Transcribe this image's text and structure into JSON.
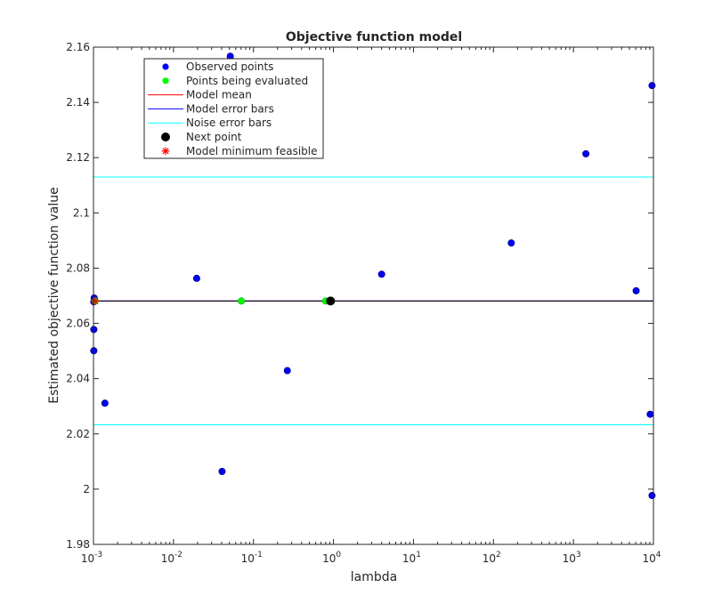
{
  "chart_data": {
    "type": "scatter",
    "title": "Objective function model",
    "xlabel": "lambda",
    "ylabel": "Estimated objective function value",
    "xscale": "log",
    "xlim": [
      0.001,
      10000
    ],
    "ylim": [
      1.98,
      2.16
    ],
    "grid": false,
    "legend_placement": "top-left",
    "x_ticks": [
      {
        "value": 0.001,
        "base": "10",
        "exp": "-3"
      },
      {
        "value": 0.01,
        "base": "10",
        "exp": "-2"
      },
      {
        "value": 0.1,
        "base": "10",
        "exp": "-1"
      },
      {
        "value": 1,
        "base": "10",
        "exp": "0"
      },
      {
        "value": 10,
        "base": "10",
        "exp": "1"
      },
      {
        "value": 100,
        "base": "10",
        "exp": "2"
      },
      {
        "value": 1000,
        "base": "10",
        "exp": "3"
      },
      {
        "value": 10000,
        "base": "10",
        "exp": "4"
      }
    ],
    "y_ticks": [
      {
        "value": 1.98,
        "label": "1.98"
      },
      {
        "value": 2.0,
        "label": "2"
      },
      {
        "value": 2.02,
        "label": "2.02"
      },
      {
        "value": 2.04,
        "label": "2.04"
      },
      {
        "value": 2.06,
        "label": "2.06"
      },
      {
        "value": 2.08,
        "label": "2.08"
      },
      {
        "value": 2.1,
        "label": "2.1"
      },
      {
        "value": 2.12,
        "label": "2.12"
      },
      {
        "value": 2.14,
        "label": "2.14"
      },
      {
        "value": 2.16,
        "label": "2.16"
      }
    ],
    "legend": [
      {
        "label": "Observed points",
        "marker": "dot",
        "color": "#0000ff"
      },
      {
        "label": "Points being evaluated",
        "marker": "dot",
        "color": "#00ff00"
      },
      {
        "label": "Model mean",
        "marker": "line",
        "color": "#ff0000"
      },
      {
        "label": "Model error bars",
        "marker": "line",
        "color": "#0000ff"
      },
      {
        "label": "Noise error bars",
        "marker": "line",
        "color": "#00ffff"
      },
      {
        "label": "Next point",
        "marker": "bigdot",
        "color": "#000000"
      },
      {
        "label": "Model minimum feasible",
        "marker": "star",
        "color": "#ff0000"
      }
    ],
    "series": [
      {
        "name": "Observed points",
        "color": "#0000ff",
        "points": [
          {
            "x": 0.00102,
            "y": 2.0692
          },
          {
            "x": 0.00101,
            "y": 2.0678
          },
          {
            "x": 0.00101,
            "y": 2.0578
          },
          {
            "x": 0.00101,
            "y": 2.0501
          },
          {
            "x": 0.00139,
            "y": 2.0311
          },
          {
            "x": 0.0195,
            "y": 2.0763
          },
          {
            "x": 0.0405,
            "y": 2.0064
          },
          {
            "x": 0.0513,
            "y": 2.1567
          },
          {
            "x": 0.265,
            "y": 2.0429
          },
          {
            "x": 4.0,
            "y": 2.0778
          },
          {
            "x": 167,
            "y": 2.0891
          },
          {
            "x": 1430,
            "y": 2.1214
          },
          {
            "x": 6080,
            "y": 2.0718
          },
          {
            "x": 9100,
            "y": 2.0271
          },
          {
            "x": 9600,
            "y": 1.9977
          },
          {
            "x": 9600,
            "y": 2.1461
          }
        ]
      },
      {
        "name": "Points being evaluated",
        "color": "#00ff00",
        "points": [
          {
            "x": 0.00105,
            "y": 2.0681
          },
          {
            "x": 0.0705,
            "y": 2.0681
          },
          {
            "x": 0.8,
            "y": 2.0681
          }
        ]
      },
      {
        "name": "Model mean",
        "color": "#ff0000",
        "y": 2.0681
      },
      {
        "name": "Model error bars",
        "color": "#0000ff",
        "lower": 2.0681,
        "upper": 2.0681
      },
      {
        "name": "Noise error bars",
        "color": "#00ffff",
        "lower": 2.0233,
        "upper": 2.113
      },
      {
        "name": "Next point",
        "color": "#000000",
        "points": [
          {
            "x": 0.92,
            "y": 2.0681
          }
        ]
      },
      {
        "name": "Model minimum feasible",
        "color": "#ff0000",
        "points": [
          {
            "x": 0.00105,
            "y": 2.0681
          }
        ]
      }
    ]
  }
}
